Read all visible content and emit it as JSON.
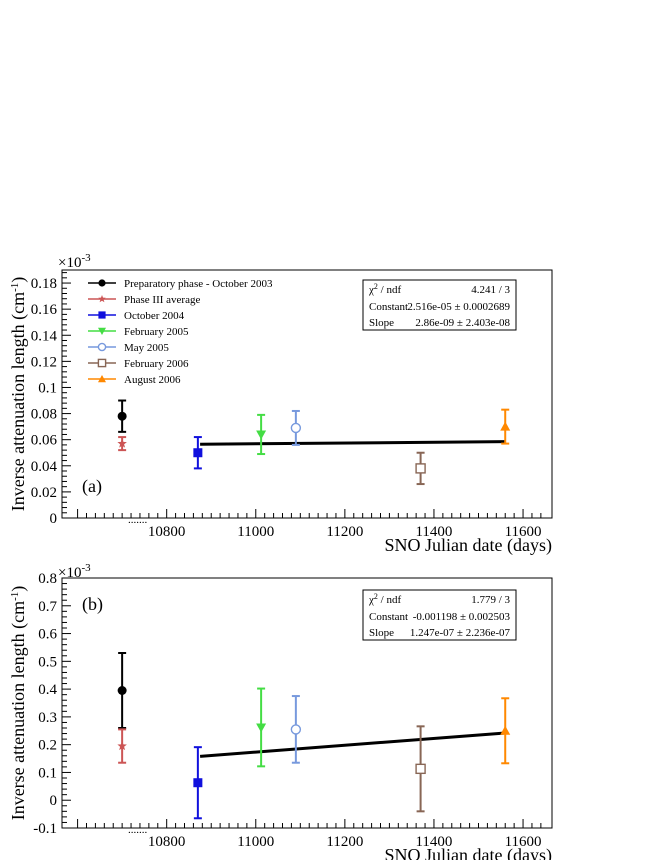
{
  "legend": {
    "entries": [
      {
        "label": "Preparatory phase - October 2003",
        "color": "#000000",
        "marker": "circle"
      },
      {
        "label": "Phase III average",
        "color": "#cc5555",
        "marker": "star"
      },
      {
        "label": "October 2004",
        "color": "#1010dd",
        "marker": "square"
      },
      {
        "label": "February 2005",
        "color": "#44dd44",
        "marker": "triangle-down"
      },
      {
        "label": "May 2005",
        "color": "#7799dd",
        "marker": "open-circle"
      },
      {
        "label": "February 2006",
        "color": "#886655",
        "marker": "open-square"
      },
      {
        "label": "August 2006",
        "color": "#ff8800",
        "marker": "triangle-up"
      }
    ]
  },
  "chart_data": [
    {
      "type": "scatter",
      "panel_label": "(a)",
      "xlabel": "SNO Julian date (days)",
      "ylabel_parts": {
        "text": "Inverse attenuation length (cm",
        "sup": "-1",
        "close": ")"
      },
      "exponent_parts": {
        "base": "×10",
        "sup": "-3"
      },
      "xlim": [
        10565,
        11665
      ],
      "ylim": [
        0,
        0.19
      ],
      "xticks": [
        10800,
        11000,
        11200,
        11400,
        11600
      ],
      "yticks": [
        0,
        0.02,
        0.04,
        0.06,
        0.08,
        0.1,
        0.12,
        0.14,
        0.16,
        0.18
      ],
      "ytick_labels": [
        "0",
        "0.02",
        "0.04",
        "0.06",
        "0.08",
        "0.1",
        "0.12",
        "0.14",
        "0.16",
        "0.18"
      ],
      "points": [
        {
          "name": "Preparatory phase - October 2003",
          "x": 10700,
          "y": 0.078,
          "err": 0.012
        },
        {
          "name": "Phase III average",
          "x": 10700,
          "y": 0.057,
          "err": 0.005
        },
        {
          "name": "October 2004",
          "x": 10870,
          "y": 0.05,
          "err": 0.012
        },
        {
          "name": "February 2005",
          "x": 11012,
          "y": 0.064,
          "err": 0.015
        },
        {
          "name": "May 2005",
          "x": 11090,
          "y": 0.069,
          "err": 0.013
        },
        {
          "name": "February 2006",
          "x": 11370,
          "y": 0.038,
          "err": 0.012
        },
        {
          "name": "August 2006",
          "x": 11560,
          "y": 0.07,
          "err": 0.013
        }
      ],
      "fit": {
        "x": [
          10875,
          11560
        ],
        "y": [
          0.0565,
          0.0585
        ]
      },
      "stats": {
        "chi_label": "χ",
        "chi_sup": "2",
        "chi_tail": " / ndf",
        "chi_value": "4.241 / 3",
        "constant_label": "Constant",
        "constant_value": "2.516e-05 ± 0.0002689",
        "slope_label": "Slope",
        "slope_value": "2.86e-09 ± 2.403e-08"
      },
      "stray_label": "......."
    },
    {
      "type": "scatter",
      "panel_label": "(b)",
      "xlabel": "SNO Julian date (days)",
      "ylabel_parts": {
        "text": "Inverse attenuation length (cm",
        "sup": "-1",
        "close": ")"
      },
      "exponent_parts": {
        "base": "×10",
        "sup": "-3"
      },
      "xlim": [
        10565,
        11665
      ],
      "ylim": [
        -0.1,
        0.8
      ],
      "xticks": [
        10800,
        11000,
        11200,
        11400,
        11600
      ],
      "yticks": [
        -0.1,
        0,
        0.1,
        0.2,
        0.3,
        0.4,
        0.5,
        0.6,
        0.7,
        0.8
      ],
      "ytick_labels": [
        "-0.1",
        "0",
        "0.1",
        "0.2",
        "0.3",
        "0.4",
        "0.5",
        "0.6",
        "0.7",
        "0.8"
      ],
      "points": [
        {
          "name": "Preparatory phase - October 2003",
          "x": 10700,
          "y": 0.395,
          "err": 0.135
        },
        {
          "name": "Phase III average",
          "x": 10700,
          "y": 0.195,
          "err": 0.06
        },
        {
          "name": "October 2004",
          "x": 10870,
          "y": 0.063,
          "err": 0.128
        },
        {
          "name": "February 2005",
          "x": 11012,
          "y": 0.262,
          "err": 0.14
        },
        {
          "name": "May 2005",
          "x": 11090,
          "y": 0.255,
          "err": 0.12
        },
        {
          "name": "February 2006",
          "x": 11370,
          "y": 0.113,
          "err": 0.153
        },
        {
          "name": "August 2006",
          "x": 11560,
          "y": 0.25,
          "err": 0.117
        }
      ],
      "fit": {
        "x": [
          10875,
          11560
        ],
        "y": [
          0.158,
          0.242
        ]
      },
      "stats": {
        "chi_label": "χ",
        "chi_sup": "2",
        "chi_tail": " / ndf",
        "chi_value": "1.779 / 3",
        "constant_label": "Constant",
        "constant_value": "-0.001198 ± 0.002503",
        "slope_label": "Slope",
        "slope_value": "1.247e-07 ± 2.236e-07"
      },
      "stray_label": "......."
    }
  ]
}
